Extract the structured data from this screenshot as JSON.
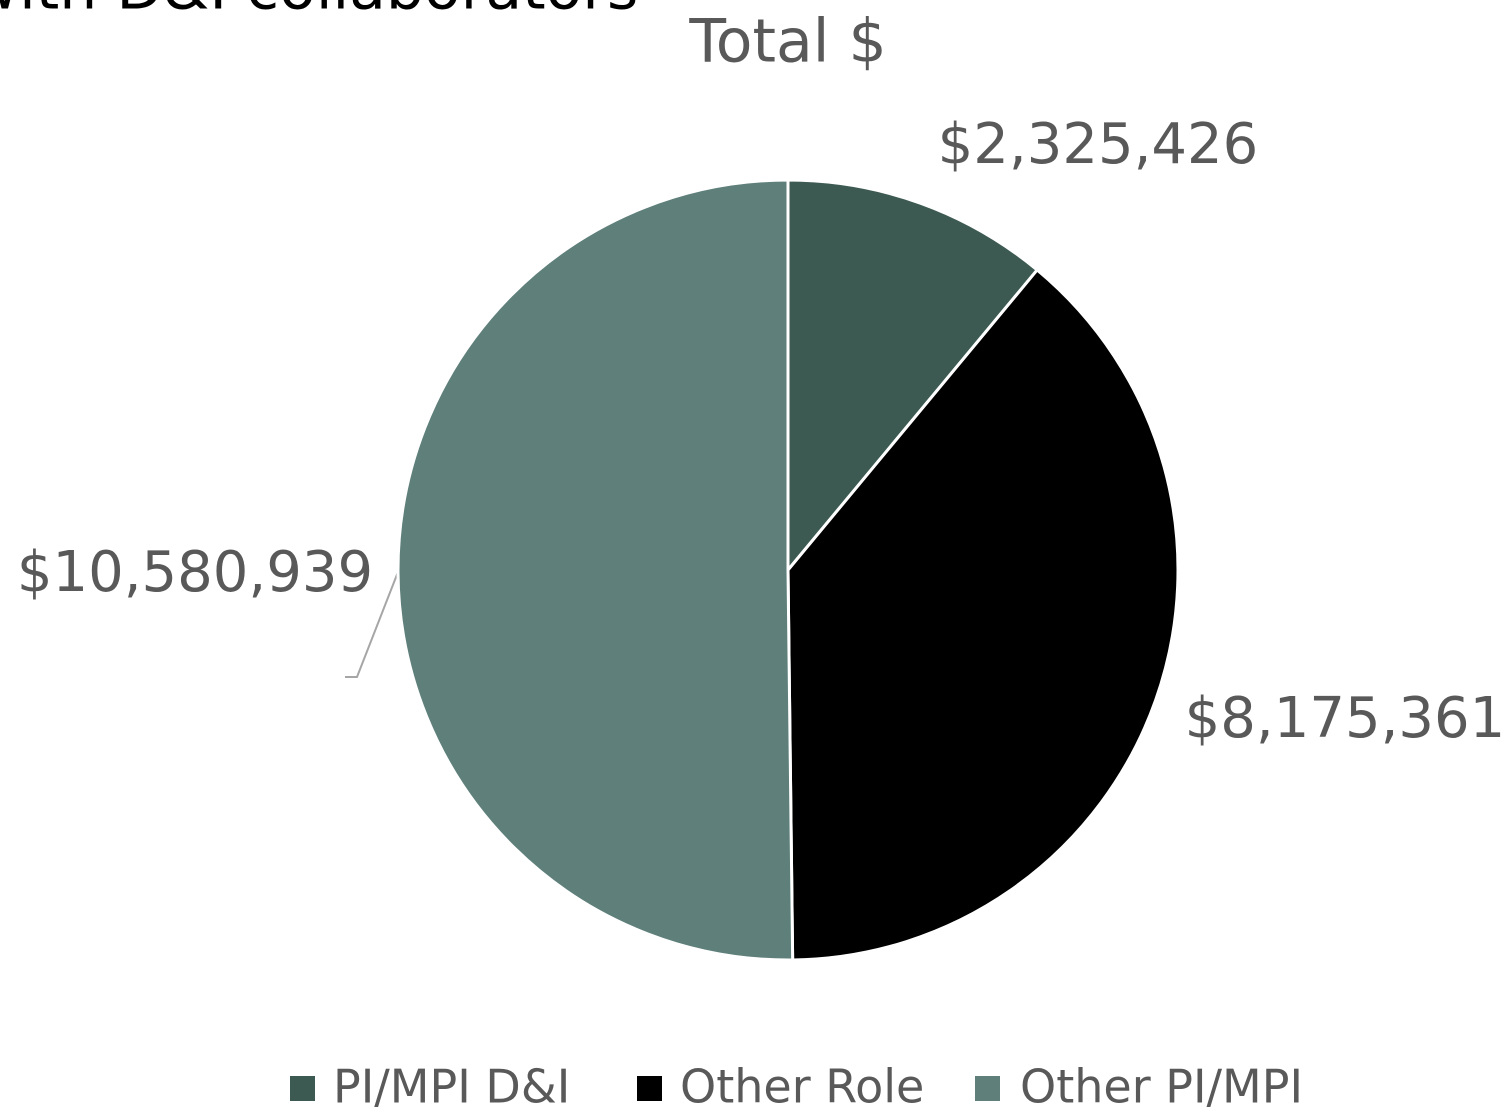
{
  "heading": "with D&I collaborators",
  "chart_data": {
    "type": "pie",
    "title": "Total $",
    "categories": [
      "PI/MPI D&I",
      "Other Role",
      "Other PI/MPI"
    ],
    "values": [
      2325426,
      8175361,
      10580939
    ],
    "value_labels": [
      "$2,325,426",
      "$8,175,361",
      "$10,580,939"
    ],
    "colors": [
      "#3d5a52",
      "#000000",
      "#5e7f7a"
    ],
    "legend": "bottom"
  }
}
